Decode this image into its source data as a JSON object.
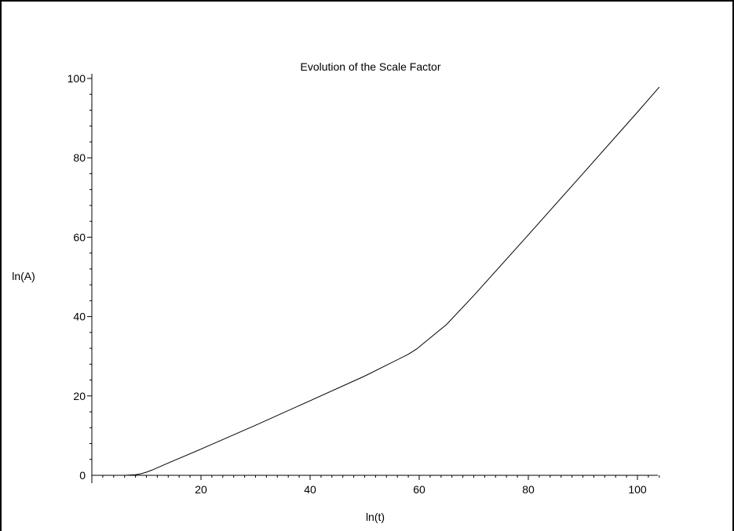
{
  "chart_data": {
    "type": "line",
    "title": "Evolution of the Scale Factor",
    "xlabel": "ln(t)",
    "ylabel": "ln(A)",
    "xlim": [
      0,
      104
    ],
    "ylim": [
      0,
      100
    ],
    "x_ticks": [
      20,
      40,
      60,
      80,
      100
    ],
    "y_ticks": [
      0,
      20,
      40,
      60,
      80,
      100
    ],
    "x_tick_labels": [
      "20",
      "40",
      "60",
      "80",
      "100"
    ],
    "y_tick_labels": [
      "0",
      "20",
      "40",
      "60",
      "80",
      "100"
    ],
    "grid": false,
    "series": [
      {
        "x": [
          0,
          6,
          8,
          9,
          10,
          11,
          12,
          14,
          20,
          30,
          40,
          50,
          58,
          59.5,
          61,
          65,
          70,
          80,
          90,
          100,
          104
        ],
        "y": [
          0,
          0,
          0.15,
          0.4,
          0.8,
          1.3,
          1.9,
          3.1,
          6.6,
          12.6,
          18.8,
          25.0,
          30.5,
          31.8,
          33.5,
          38.0,
          45.3,
          60.6,
          76.0,
          91.5,
          97.8
        ]
      }
    ]
  }
}
